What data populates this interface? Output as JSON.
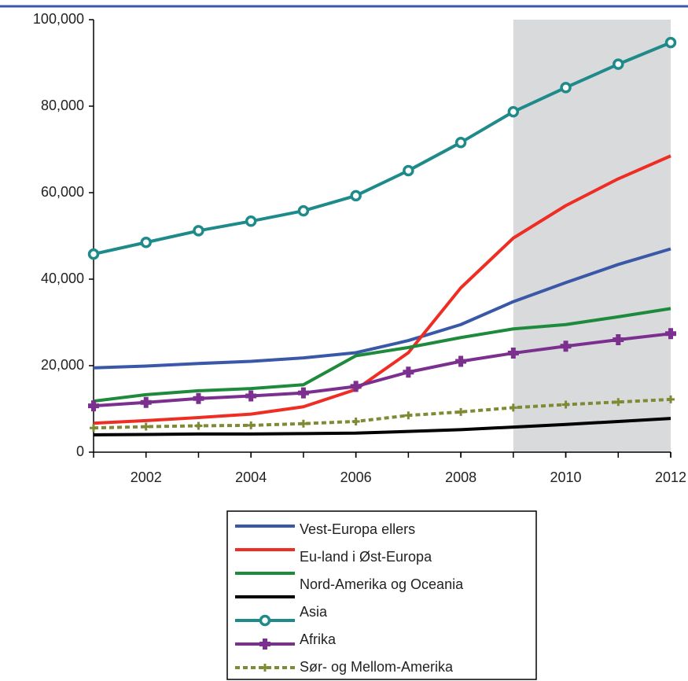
{
  "chart_data": {
    "type": "line",
    "x": [
      2001,
      2002,
      2003,
      2004,
      2005,
      2006,
      2007,
      2008,
      2009,
      2010,
      2011,
      2012
    ],
    "xlim": [
      2001,
      2012
    ],
    "xticks": [
      2002,
      2004,
      2006,
      2008,
      2010,
      2012
    ],
    "ylim": [
      0,
      100000
    ],
    "yticks": [
      {
        "value": 0,
        "label": "0"
      },
      {
        "value": 20000,
        "label": "20,000"
      },
      {
        "value": 40000,
        "label": "40,000"
      },
      {
        "value": 60000,
        "label": "60,000"
      },
      {
        "value": 80000,
        "label": "80,000"
      },
      {
        "value": 100000,
        "label": "100,000"
      }
    ],
    "shade": [
      2009,
      2012
    ],
    "shade_color": "#d9dadc",
    "series": [
      {
        "name": "Vest-Europa ellers",
        "color": "#3a58a8",
        "marker": "none",
        "values": [
          19500,
          19900,
          20500,
          21000,
          21800,
          23000,
          25800,
          29500,
          34800,
          39200,
          43400,
          47000
        ]
      },
      {
        "name": "Eu-land i Øst-Europa",
        "color": "#ee2e24",
        "marker": "none",
        "values": [
          6700,
          7300,
          8000,
          8800,
          10500,
          14500,
          23000,
          38000,
          49500,
          57000,
          63200,
          68500
        ]
      },
      {
        "name": null,
        "color": "#1e8a3c",
        "marker": "none",
        "values": [
          11800,
          13300,
          14200,
          14700,
          15600,
          22300,
          24200,
          26500,
          28500,
          29500,
          31300,
          33200
        ]
      },
      {
        "name": "Nord-Amerika og Oceania",
        "color": "#000000",
        "marker": "none",
        "values": [
          4000,
          4100,
          4200,
          4200,
          4300,
          4400,
          4800,
          5200,
          5800,
          6400,
          7100,
          7800
        ]
      },
      {
        "name": "Asia",
        "color": "#1f8a8a",
        "marker": "circle",
        "values": [
          45800,
          48500,
          51200,
          53400,
          55800,
          59300,
          65100,
          71600,
          78700,
          84300,
          89700,
          94700
        ]
      },
      {
        "name": "Afrika",
        "color": "#7b2f8e",
        "marker": "cross",
        "values": [
          10700,
          11500,
          12400,
          13000,
          13700,
          15200,
          18500,
          21000,
          22900,
          24500,
          26000,
          27400
        ]
      },
      {
        "name": "Sør- og Mellom-Amerika",
        "color": "#808a35",
        "marker": "plus",
        "dashed": true,
        "values": [
          5600,
          5900,
          6100,
          6200,
          6600,
          7100,
          8500,
          9300,
          10300,
          11000,
          11600,
          12200
        ]
      }
    ]
  }
}
